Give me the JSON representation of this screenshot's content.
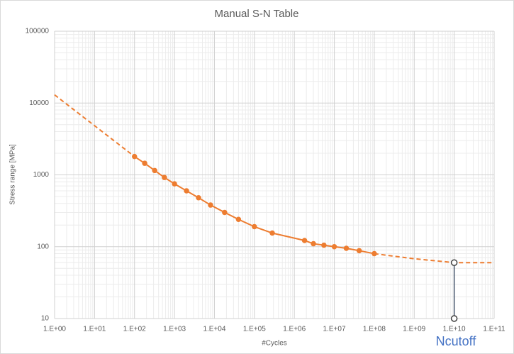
{
  "chart_data": {
    "type": "line",
    "title": "Manual S-N Table",
    "x_label": "#Cycles",
    "y_label": "Stress range [MPa]",
    "xscale": "log",
    "yscale": "log",
    "grid": true,
    "minor_grid": true,
    "xlim": [
      1,
      100000000000
    ],
    "ylim": [
      10,
      100000
    ],
    "xticks": [
      {
        "value": 1,
        "label": "1.E+00"
      },
      {
        "value": 10,
        "label": "1.E+01"
      },
      {
        "value": 100,
        "label": "1.E+02"
      },
      {
        "value": 1000,
        "label": "1.E+03"
      },
      {
        "value": 10000,
        "label": "1.E+04"
      },
      {
        "value": 100000,
        "label": "1.E+05"
      },
      {
        "value": 1000000,
        "label": "1.E+06"
      },
      {
        "value": 10000000,
        "label": "1.E+07"
      },
      {
        "value": 100000000,
        "label": "1.E+08"
      },
      {
        "value": 1000000000,
        "label": "1.E+09"
      },
      {
        "value": 10000000000,
        "label": "1.E+10"
      },
      {
        "value": 100000000000,
        "label": "1.E+11"
      }
    ],
    "yticks": [
      10,
      100,
      1000,
      10000,
      100000
    ],
    "series": [
      {
        "color": "#ed7d31",
        "dashed": true,
        "marker": "none",
        "x": [
          1,
          100
        ],
        "values": [
          13000,
          1800
        ]
      },
      {
        "color": "#ed7d31",
        "dashed": false,
        "marker": "filled",
        "x": [
          100,
          180,
          320,
          560,
          1000,
          2000,
          4000,
          8000,
          18000,
          40000,
          100000,
          280000,
          1800000,
          3000000,
          5500000,
          10000000,
          20000000,
          42000000,
          100000000
        ],
        "values": [
          1800,
          1450,
          1150,
          920,
          750,
          600,
          480,
          380,
          300,
          240,
          190,
          155,
          122,
          110,
          105,
          100,
          95,
          88,
          80
        ]
      },
      {
        "color": "#ed7d31",
        "dashed": true,
        "marker": "none",
        "x": [
          100000000,
          1000000000,
          10000000000,
          100000000000
        ],
        "values": [
          80,
          68,
          60,
          60
        ]
      },
      {
        "color": "#44546a",
        "dashed": false,
        "marker": "hollow",
        "x": [
          10000000000,
          10000000000
        ],
        "values": [
          60,
          10
        ]
      }
    ],
    "annotations": [
      {
        "text": "Ncutoff",
        "color": "#4472c4"
      }
    ]
  }
}
